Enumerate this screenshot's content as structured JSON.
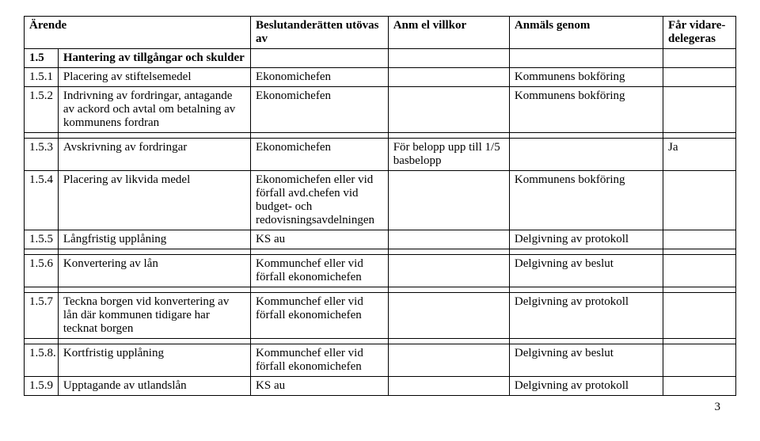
{
  "headers": {
    "col1": "Ärende",
    "col2": "",
    "col3": "Beslutanderätten utövas av",
    "col4": "Anm el villkor",
    "col5": "Anmäls genom",
    "col6": "Får vidare-delegeras"
  },
  "rows": [
    {
      "num": "1.5",
      "title": "Hantering av tillgångar och skulder",
      "authority": "",
      "cond": "",
      "report": "",
      "delegate": "",
      "bold": true
    },
    {
      "num": "1.5.1",
      "title": "Placering av stiftelsemedel",
      "authority": "Ekonomichefen",
      "cond": "",
      "report": "Kommunens bokföring",
      "delegate": ""
    },
    {
      "num": "1.5.2",
      "title": "Indrivning av fordringar, antagande av ackord och avtal om betalning av kommunens fordran",
      "authority": "Ekonomichefen",
      "cond": "",
      "report": "Kommunens bokföring",
      "delegate": ""
    },
    {
      "num": "",
      "title": "",
      "authority": "",
      "cond": "",
      "report": "",
      "delegate": ""
    },
    {
      "num": "1.5.3",
      "title": "Avskrivning av fordringar",
      "authority": "Ekonomichefen",
      "cond": "För belopp upp till 1/5 basbelopp",
      "report": "",
      "delegate": "Ja"
    },
    {
      "num": "1.5.4",
      "title": "Placering av likvida medel",
      "authority": "Ekonomichefen eller vid förfall avd.chefen vid budget- och redovisningsavdelningen",
      "cond": "",
      "report": "Kommunens bokföring",
      "delegate": ""
    },
    {
      "num": "1.5.5",
      "title": "Långfristig upplåning",
      "authority": "KS au",
      "cond": "",
      "report": "Delgivning av protokoll",
      "delegate": ""
    },
    {
      "num": "",
      "title": "",
      "authority": "",
      "cond": "",
      "report": "",
      "delegate": ""
    },
    {
      "num": "1.5.6",
      "title": "Konvertering av lån",
      "authority": "Kommunchef eller vid förfall ekonomichefen",
      "cond": "",
      "report": "Delgivning av beslut",
      "delegate": ""
    },
    {
      "num": "",
      "title": "",
      "authority": "",
      "cond": "",
      "report": "",
      "delegate": ""
    },
    {
      "num": "1.5.7",
      "title": "Teckna borgen vid konvertering av lån där kommunen tidigare har tecknat borgen",
      "authority": "Kommunchef eller vid förfall ekonomichefen",
      "cond": "",
      "report": "Delgivning av protokoll",
      "delegate": ""
    },
    {
      "num": "",
      "title": "",
      "authority": "",
      "cond": "",
      "report": "",
      "delegate": ""
    },
    {
      "num": "1.5.8.",
      "title": "Kortfristig upplåning",
      "authority": "Kommunchef eller vid förfall ekonomichefen",
      "cond": "",
      "report": "Delgivning av beslut",
      "delegate": ""
    },
    {
      "num": "1.5.9",
      "title": "Upptagande av utlandslån",
      "authority": "KS au",
      "cond": "",
      "report": "Delgivning av protokoll",
      "delegate": ""
    }
  ],
  "pageNumber": "3"
}
